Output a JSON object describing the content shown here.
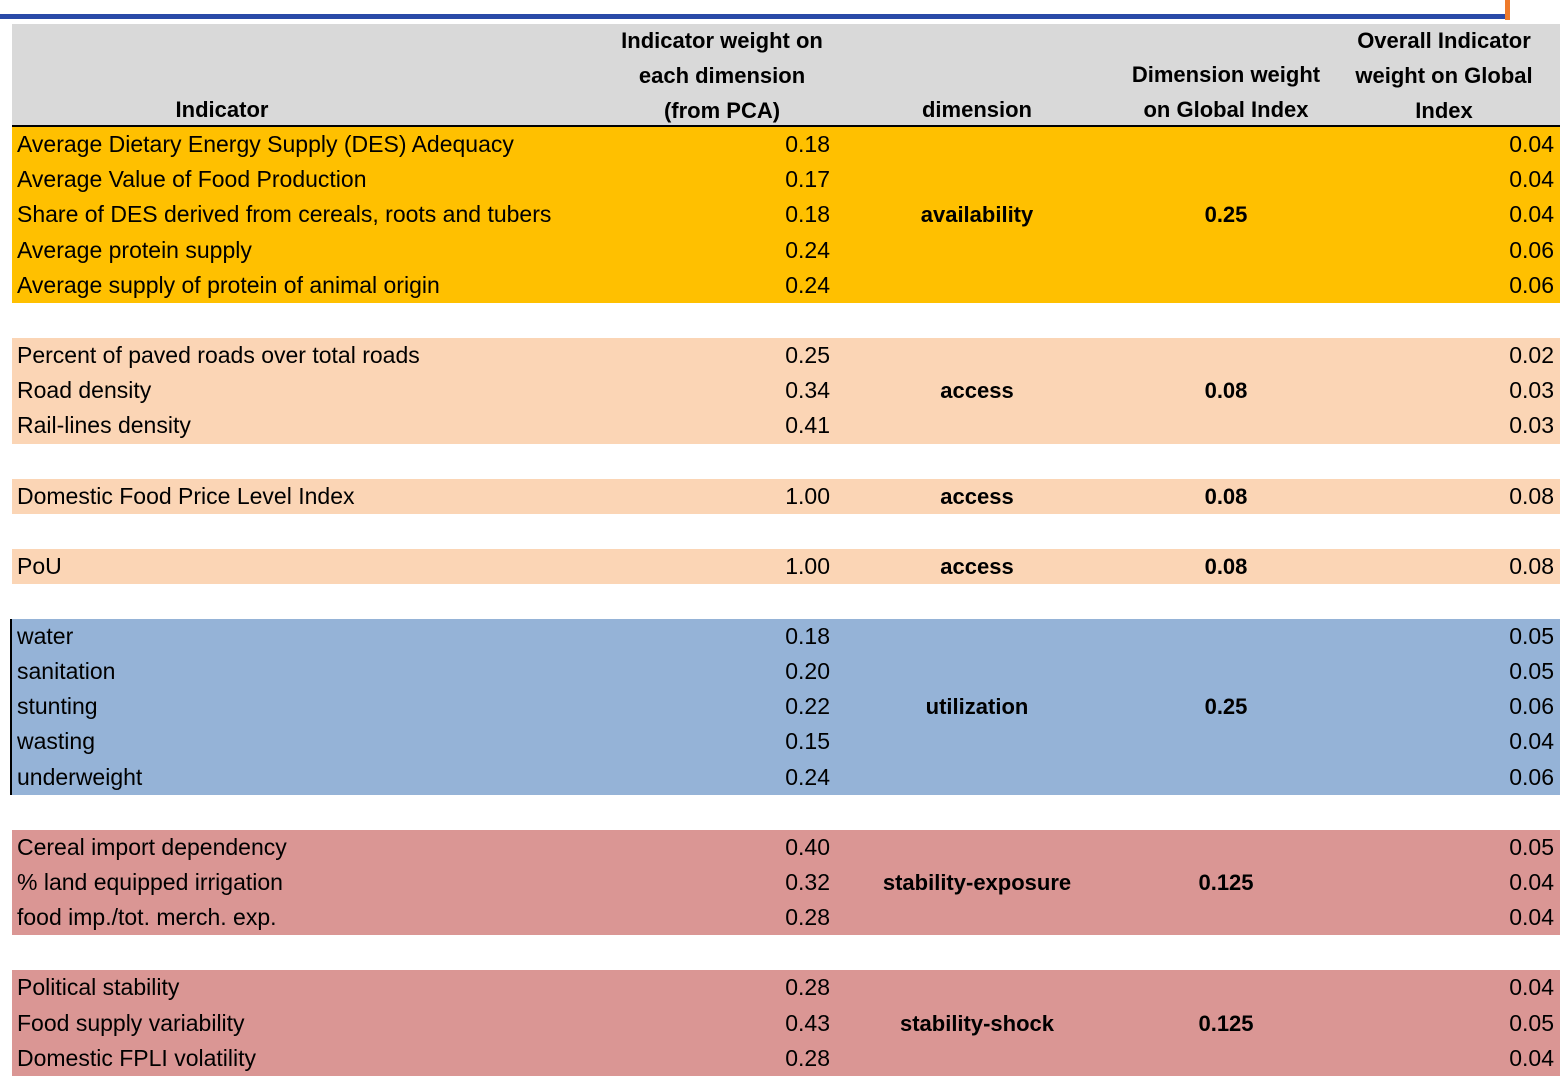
{
  "header": {
    "indicator": "Indicator",
    "weight_dim": "Indicator weight on\neach dimension\n(from PCA)",
    "dimension": "dimension",
    "dim_weight": "Dimension weight\non Global Index",
    "overall": "Overall Indicator\nweight on Global\nIndex"
  },
  "blocks": [
    {
      "dimension": "availability",
      "dim_weight": "0.25",
      "rows": [
        {
          "name": "Average Dietary Energy Supply (DES) Adequacy",
          "weight": "0.18",
          "overall": "0.04"
        },
        {
          "name": "Average Value of Food Production",
          "weight": "0.17",
          "overall": "0.04"
        },
        {
          "name": "Share of DES derived from cereals, roots and tubers",
          "weight": "0.18",
          "overall": "0.04"
        },
        {
          "name": "Average protein supply",
          "weight": "0.24",
          "overall": "0.06"
        },
        {
          "name": "Average supply of protein of animal origin",
          "weight": "0.24",
          "overall": "0.06"
        }
      ]
    },
    {
      "dimension": "access",
      "dim_weight": "0.08",
      "rows": [
        {
          "name": "Percent of paved roads over total roads",
          "weight": "0.25",
          "overall": "0.02"
        },
        {
          "name": "Road density",
          "weight": "0.34",
          "overall": "0.03"
        },
        {
          "name": "Rail-lines density",
          "weight": "0.41",
          "overall": "0.03"
        }
      ]
    },
    {
      "dimension": "access",
      "dim_weight": "0.08",
      "rows": [
        {
          "name": "Domestic Food Price Level Index",
          "weight": "1.00",
          "overall": "0.08"
        }
      ]
    },
    {
      "dimension": "access",
      "dim_weight": "0.08",
      "rows": [
        {
          "name": "PoU",
          "weight": "1.00",
          "overall": "0.08"
        }
      ]
    },
    {
      "dimension": "utilization",
      "dim_weight": "0.25",
      "rows": [
        {
          "name": "water",
          "weight": "0.18",
          "overall": "0.05"
        },
        {
          "name": "sanitation",
          "weight": "0.20",
          "overall": "0.05"
        },
        {
          "name": "stunting",
          "weight": "0.22",
          "overall": "0.06"
        },
        {
          "name": "wasting",
          "weight": "0.15",
          "overall": "0.04"
        },
        {
          "name": "underweight",
          "weight": "0.24",
          "overall": "0.06"
        }
      ]
    },
    {
      "dimension": "stability-exposure",
      "dim_weight": "0.125",
      "rows": [
        {
          "name": "Cereal import dependency",
          "weight": "0.40",
          "overall": "0.05"
        },
        {
          "name": "% land equipped irrigation",
          "weight": "0.32",
          "overall": "0.04"
        },
        {
          "name": "food imp./tot. merch. exp.",
          "weight": "0.28",
          "overall": "0.04"
        }
      ]
    },
    {
      "dimension": "stability-shock",
      "dim_weight": "0.125",
      "rows": [
        {
          "name": "Political stability",
          "weight": "0.28",
          "overall": "0.04"
        },
        {
          "name": "Food supply variability",
          "weight": "0.43",
          "overall": "0.05"
        },
        {
          "name": "Domestic FPLI volatility",
          "weight": "0.28",
          "overall": "0.04"
        }
      ]
    }
  ],
  "colors": {
    "availability": "#ffc000",
    "access": "#fbd5b5",
    "utilization": "#95b3d7",
    "stability": "#da9694",
    "header": "#d9d9d9",
    "top_rule": "#2a4aa8",
    "accent": "#ee7a2b"
  }
}
